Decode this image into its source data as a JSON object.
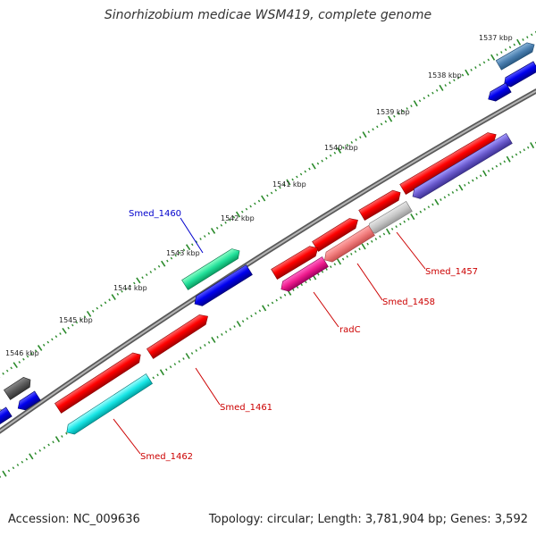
{
  "title": "Sinorhizobium medicae WSM419, complete genome",
  "accession": "Accession: NC_009636",
  "summary": "Topology: circular; Length: 3,781,904 bp; Genes: 3,592",
  "kbp_labels": [
    "1537 kbp",
    "1538 kbp",
    "1539 kbp",
    "1540 kbp",
    "1541 kbp",
    "1542 kbp",
    "1543 kbp",
    "1544 kbp",
    "1545 kbp",
    "1546 kbp"
  ],
  "gene_labels": {
    "smed_1460": "Smed_1460",
    "smed_1457": "Smed_1457",
    "smed_1458": "Smed_1458",
    "radc": "radC",
    "smed_1461": "Smed_1461",
    "smed_1462": "Smed_1462"
  },
  "colors": {
    "backbone": "#8a8a8a",
    "tick": "#2a8a2a",
    "blue_label": "#0000cc",
    "red_label": "#cc0000"
  }
}
